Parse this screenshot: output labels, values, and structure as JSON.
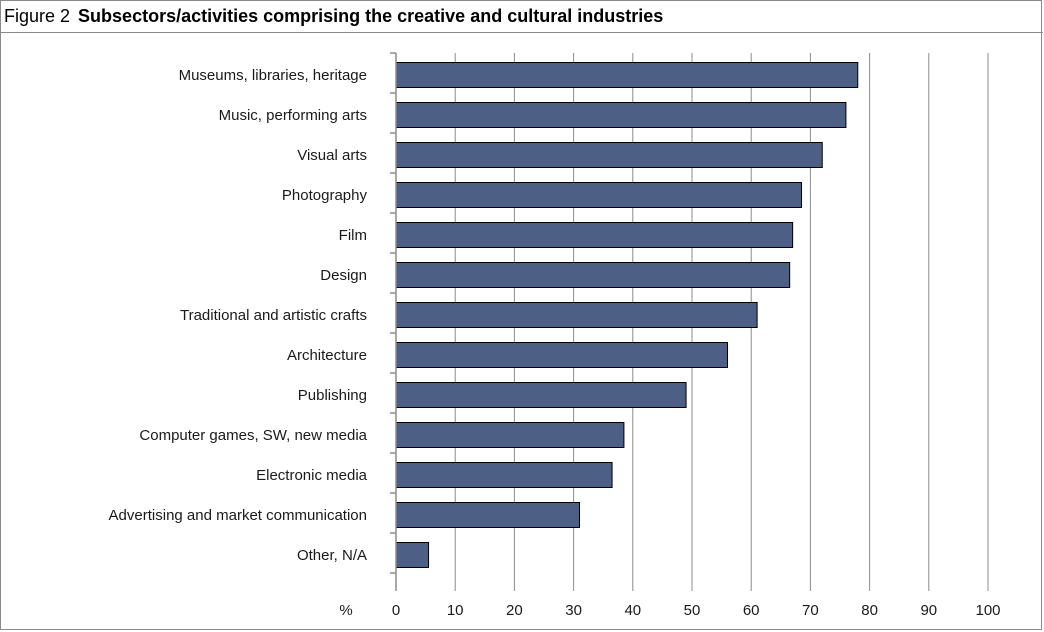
{
  "figure": {
    "label": "Figure 2",
    "title": "Subsectors/activities comprising the creative and cultural industries"
  },
  "chart_data": {
    "type": "bar",
    "orientation": "horizontal",
    "categories": [
      "Museums, libraries, heritage",
      "Music, performing arts",
      "Visual arts",
      "Photography",
      "Film",
      "Design",
      "Traditional and artistic crafts",
      "Architecture",
      "Publishing",
      "Computer games, SW, new media",
      "Electronic media",
      "Advertising and market communication",
      "Other, N/A"
    ],
    "values": [
      78,
      76,
      72,
      68.5,
      67,
      66.5,
      61,
      56,
      49,
      38.5,
      36.5,
      31,
      5.5
    ],
    "xlabel": "%",
    "xlim": [
      0,
      100
    ],
    "xticks": [
      0,
      10,
      20,
      30,
      40,
      50,
      60,
      70,
      80,
      90,
      100
    ],
    "grid": "vertical",
    "bar_color": "#4e5f86",
    "bar_edge_color": "#000000"
  }
}
